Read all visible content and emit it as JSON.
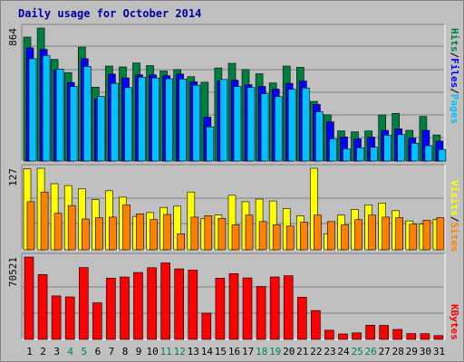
{
  "title": "Daily usage for October 2014",
  "colors": {
    "background": "#c0c0c0",
    "title": "#0000a0",
    "hits": "#008040",
    "files": "#0000ff",
    "pages": "#00c0ff",
    "visits": "#ffff00",
    "sites": "#ff8000",
    "kbytes": "#ff0000",
    "weekend_day": "#00805c",
    "weekday_day": "#000000"
  },
  "axis_labels": {
    "top_right": [
      "Pages",
      "Files",
      "Hits"
    ],
    "mid_right": [
      "Sites",
      "Visits"
    ],
    "bottom_right": "KBytes"
  },
  "chart_data": [
    {
      "type": "bar",
      "title": "Daily usage for October 2014",
      "max_label": "864",
      "ylim": [
        0,
        864
      ],
      "grid": true,
      "categories": [
        "1",
        "2",
        "3",
        "4",
        "5",
        "6",
        "7",
        "8",
        "9",
        "10",
        "11",
        "12",
        "13",
        "14",
        "15",
        "16",
        "17",
        "18",
        "19",
        "20",
        "21",
        "22",
        "23",
        "24",
        "25",
        "26",
        "27",
        "28",
        "29",
        "30",
        "31"
      ],
      "weekend_days": [
        "4",
        "5",
        "11",
        "12",
        "18",
        "19",
        "25",
        "26"
      ],
      "series": [
        {
          "name": "Hits",
          "color": "#008040",
          "values": [
            805,
            864,
            660,
            575,
            740,
            480,
            617,
            611,
            637,
            620,
            585,
            595,
            548,
            512,
            605,
            635,
            595,
            567,
            507,
            617,
            609,
            388,
            301,
            196,
            190,
            196,
            300,
            310,
            200,
            290,
            170
          ]
        },
        {
          "name": "Files",
          "color": "#0000ff",
          "values": [
            735,
            725,
            590,
            510,
            665,
            405,
            565,
            540,
            560,
            560,
            555,
            565,
            515,
            285,
            520,
            525,
            496,
            485,
            467,
            505,
            520,
            368,
            255,
            157,
            145,
            156,
            200,
            210,
            150,
            200,
            130
          ]
        },
        {
          "name": "Pages",
          "color": "#00c0ff",
          "values": [
            665,
            685,
            598,
            485,
            615,
            420,
            505,
            477,
            545,
            540,
            535,
            533,
            493,
            222,
            530,
            485,
            478,
            437,
            419,
            467,
            475,
            320,
            145,
            80,
            87,
            90,
            168,
            172,
            116,
            100,
            75
          ]
        }
      ]
    },
    {
      "type": "bar",
      "max_label": "127",
      "ylim": [
        0,
        127
      ],
      "grid": true,
      "categories": [
        "1",
        "2",
        "3",
        "4",
        "5",
        "6",
        "7",
        "8",
        "9",
        "10",
        "11",
        "12",
        "13",
        "14",
        "15",
        "16",
        "17",
        "18",
        "19",
        "20",
        "21",
        "22",
        "23",
        "24",
        "25",
        "26",
        "27",
        "28",
        "29",
        "30",
        "31"
      ],
      "series": [
        {
          "name": "Visits",
          "color": "#ffff00",
          "values": [
            126,
            127,
            103,
            100,
            95,
            78,
            92,
            82,
            52,
            58,
            66,
            68,
            90,
            49,
            54,
            85,
            75,
            79,
            76,
            64,
            53,
            127,
            25,
            54,
            63,
            70,
            73,
            61,
            45,
            40,
            47
          ]
        },
        {
          "name": "Sites",
          "color": "#ff8000",
          "values": [
            75,
            90,
            57,
            69,
            48,
            50,
            51,
            70,
            56,
            47,
            55,
            25,
            51,
            53,
            49,
            39,
            54,
            44,
            39,
            37,
            43,
            54,
            44,
            39,
            47,
            54,
            51,
            50,
            40,
            46,
            50
          ]
        }
      ]
    },
    {
      "type": "bar",
      "max_label": "70521",
      "ylim": [
        0,
        70521
      ],
      "grid": true,
      "categories": [
        "1",
        "2",
        "3",
        "4",
        "5",
        "6",
        "7",
        "8",
        "9",
        "10",
        "11",
        "12",
        "13",
        "14",
        "15",
        "16",
        "17",
        "18",
        "19",
        "20",
        "21",
        "22",
        "23",
        "24",
        "25",
        "26",
        "27",
        "28",
        "29",
        "30",
        "31"
      ],
      "series": [
        {
          "name": "KBytes",
          "color": "#ff0000",
          "values": [
            70521,
            55500,
            37300,
            36400,
            61500,
            31300,
            52500,
            53400,
            57300,
            61400,
            65500,
            60400,
            59300,
            22500,
            52400,
            56300,
            52600,
            45300,
            53500,
            54500,
            36100,
            24700,
            7800,
            4650,
            5600,
            12200,
            12050,
            8550,
            4950,
            4850,
            3250
          ]
        }
      ]
    }
  ]
}
